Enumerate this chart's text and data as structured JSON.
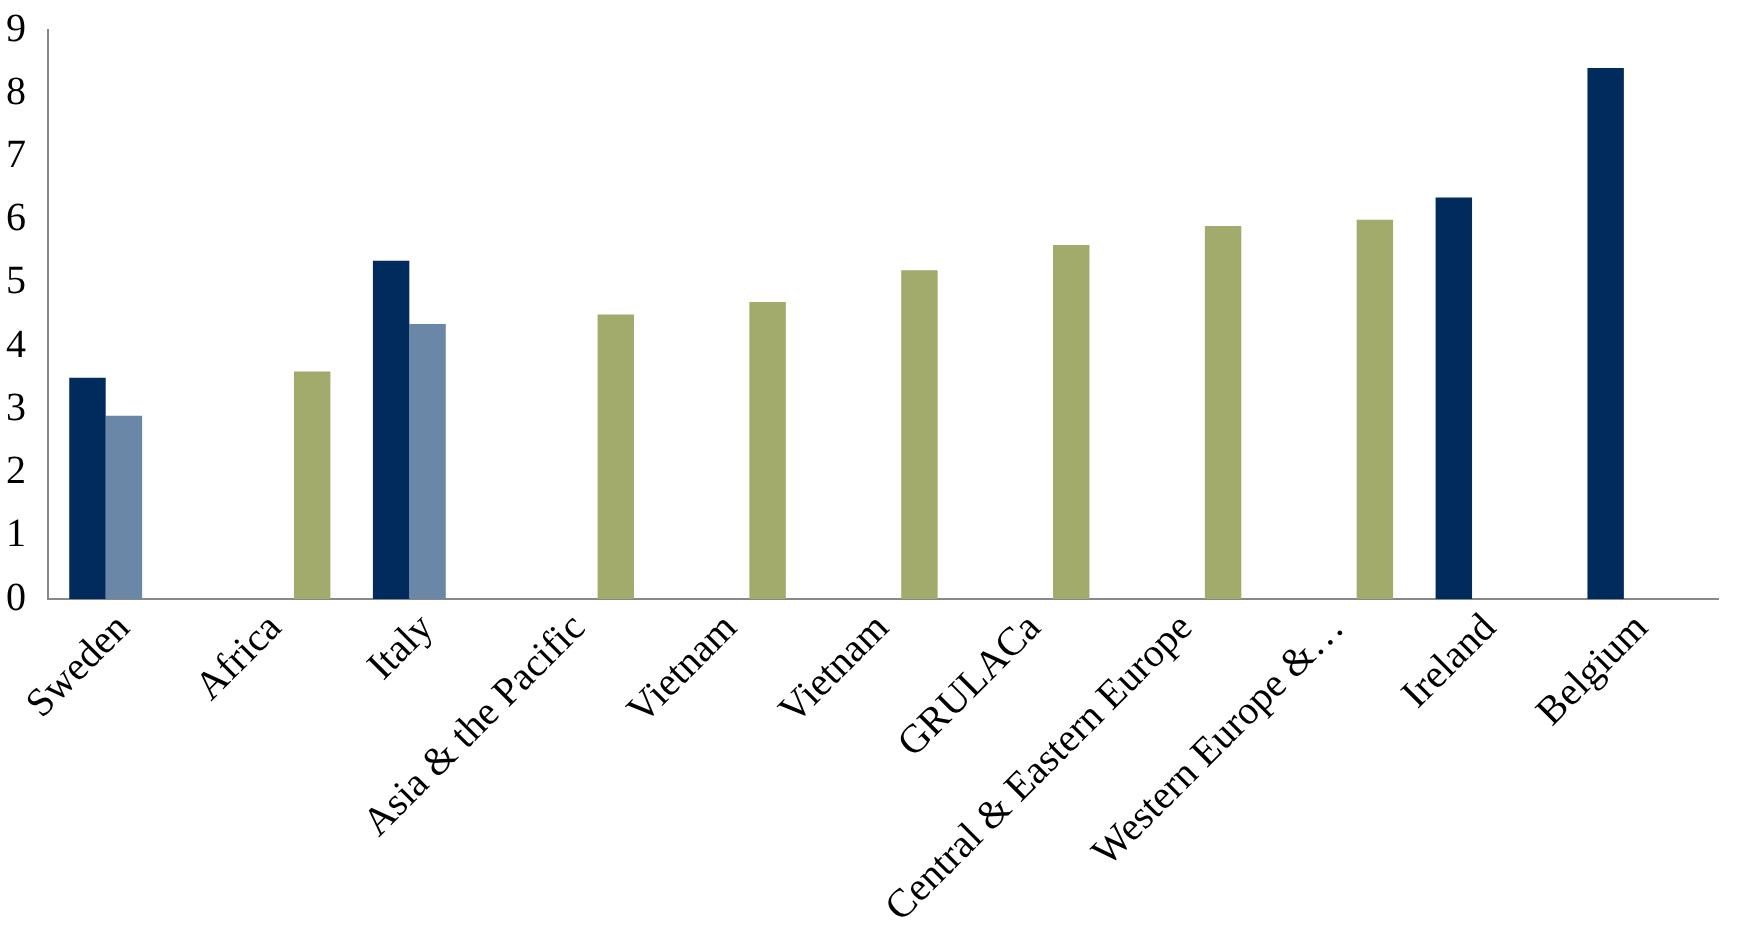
{
  "chart_data": {
    "type": "bar",
    "categories": [
      "Sweden",
      "Africa",
      "Italy",
      "Asia & the Pacific",
      "Vietnam",
      "Vietnam",
      "GRULACa",
      "Central & Eastern Europe",
      "Western Europe &…",
      "Ireland",
      "Belgium"
    ],
    "series": [
      {
        "color": "#002b5c",
        "values": [
          3.5,
          null,
          5.35,
          null,
          null,
          null,
          null,
          null,
          null,
          6.35,
          8.4
        ]
      },
      {
        "color": "#6a87a8",
        "values": [
          2.9,
          null,
          4.35,
          null,
          null,
          null,
          null,
          null,
          null,
          null,
          null
        ]
      },
      {
        "color": "#a2aa6c",
        "values": [
          null,
          3.6,
          null,
          4.5,
          4.7,
          5.2,
          5.6,
          5.9,
          6.0,
          null,
          null
        ]
      }
    ],
    "ylim": [
      0,
      9
    ],
    "yticks": [
      0,
      1,
      2,
      3,
      4,
      5,
      6,
      7,
      8,
      9
    ],
    "grid": false,
    "legend": false
  }
}
